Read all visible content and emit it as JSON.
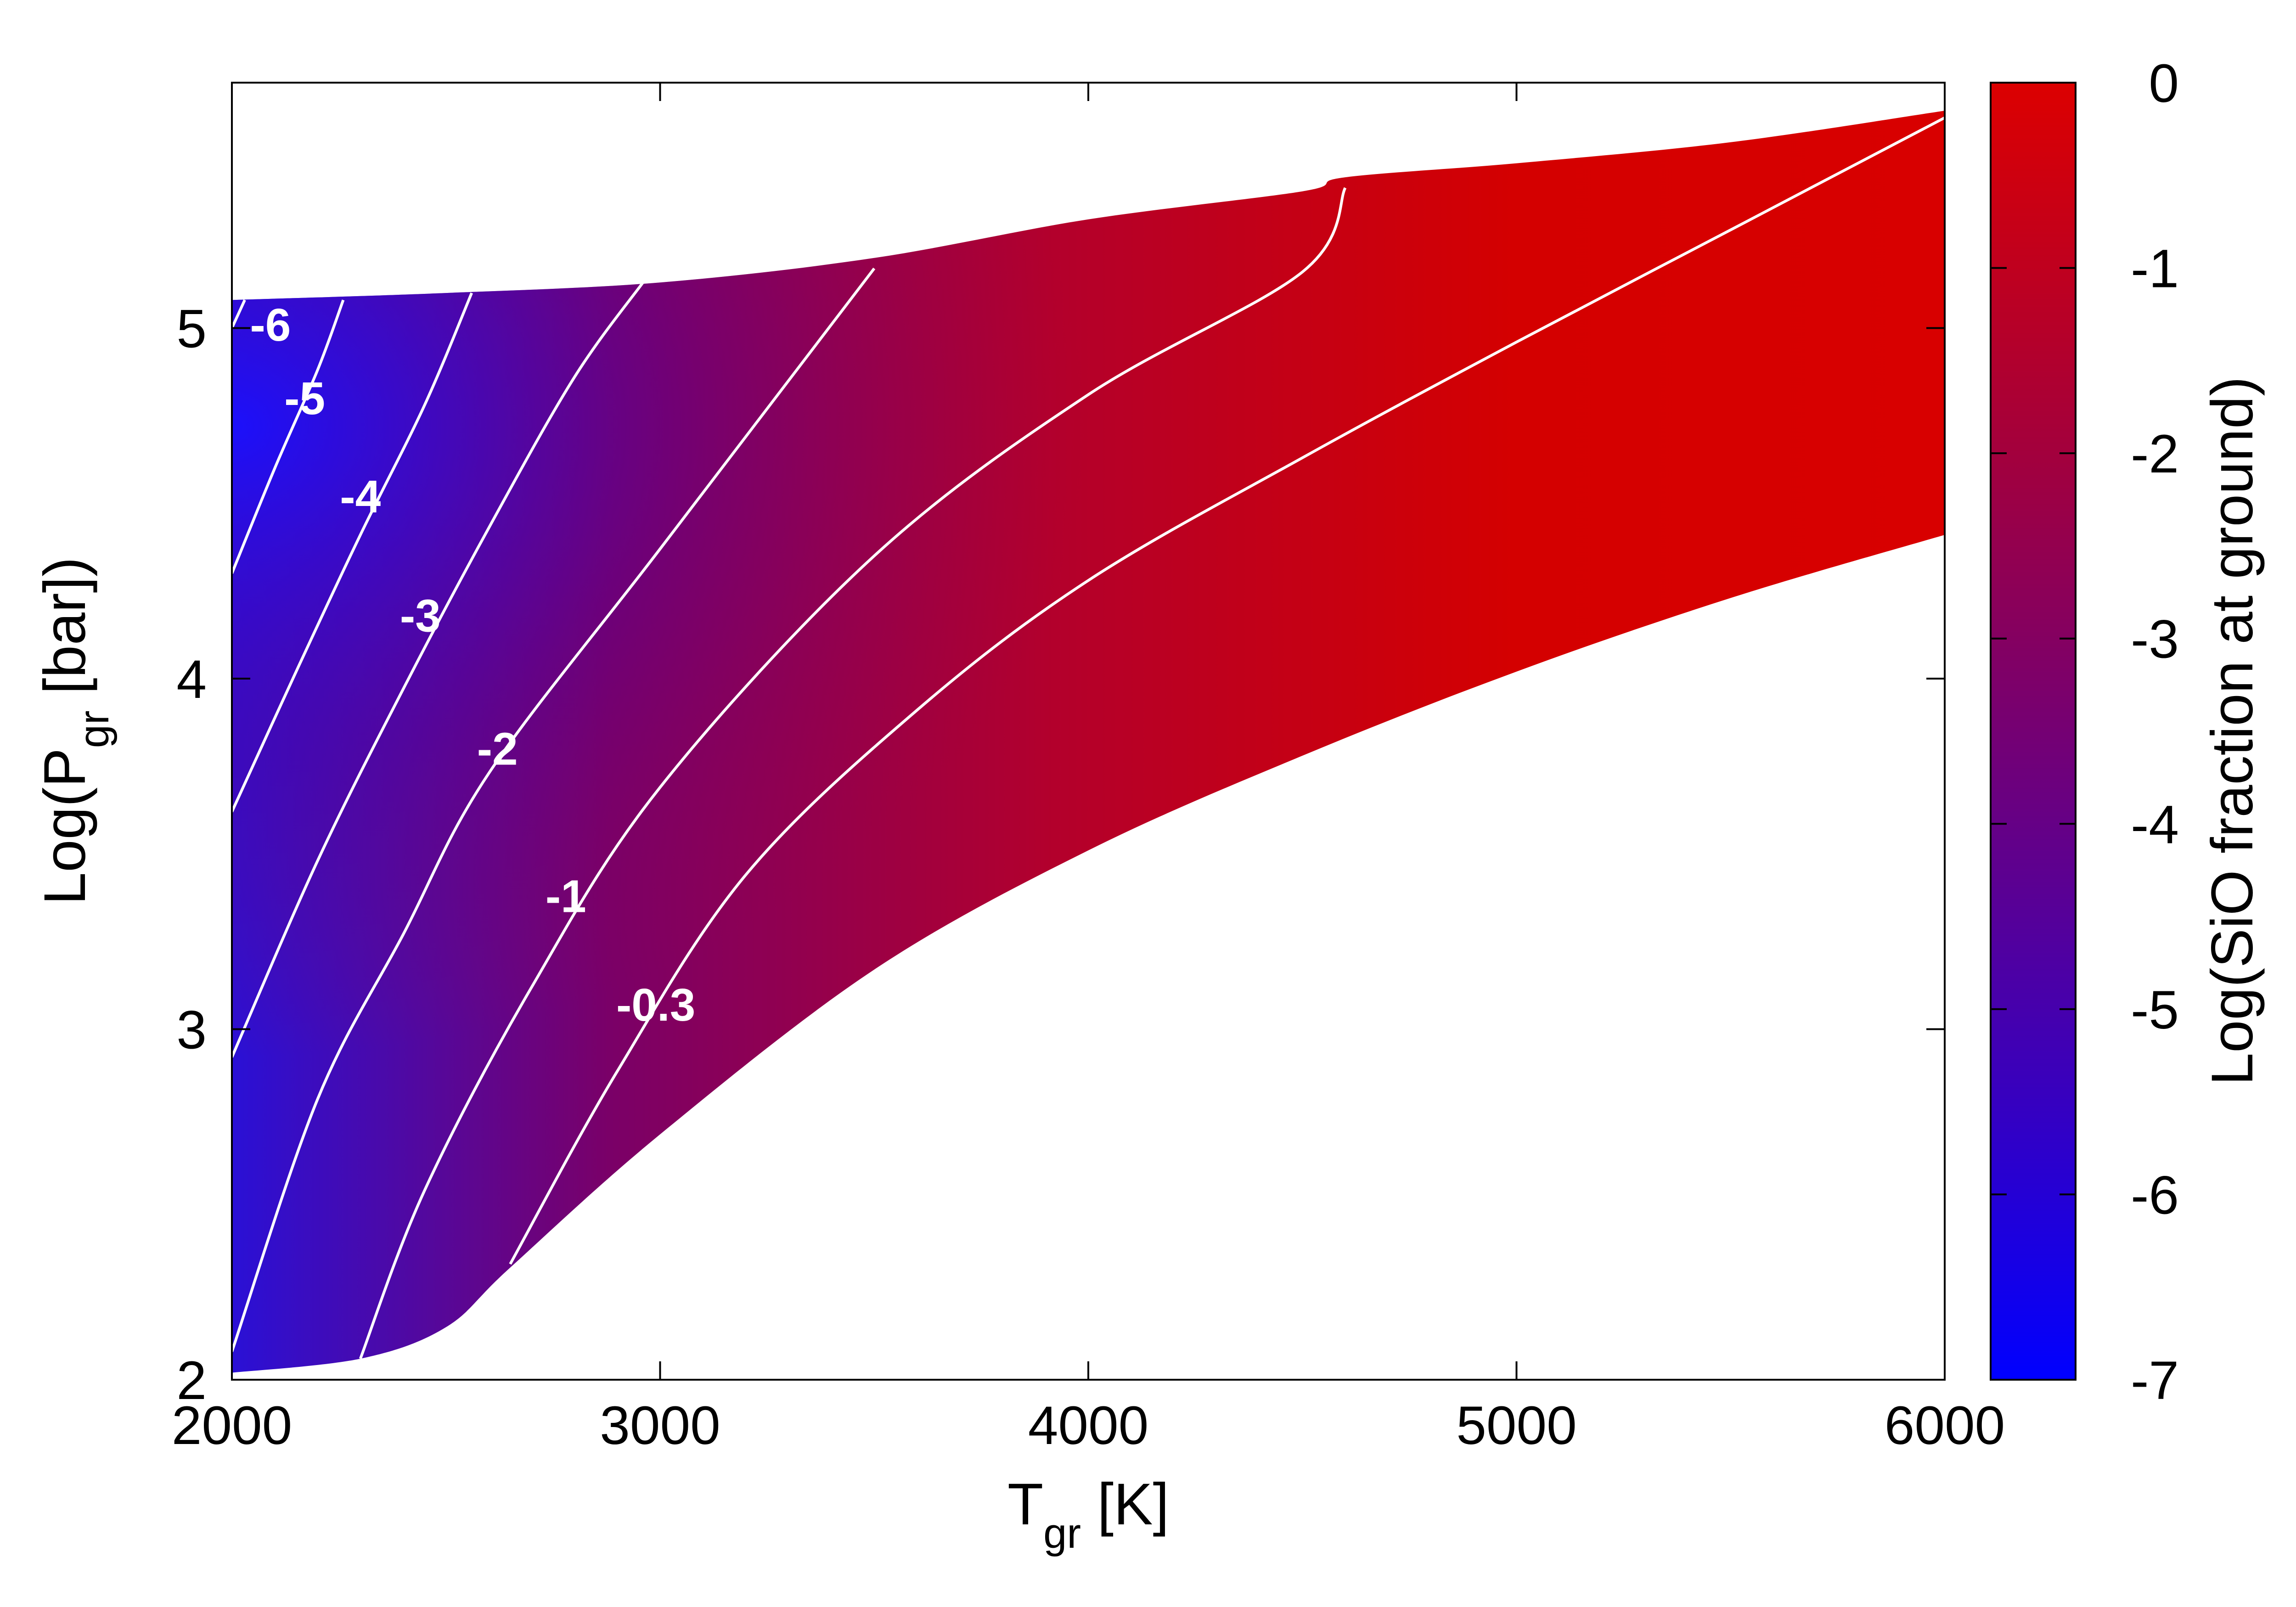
{
  "chart_data": {
    "type": "contour",
    "x_title": "T",
    "x_title_sub": "gr",
    "x_title_unit": " [K]",
    "y_title": "Log(P",
    "y_title_sub": "gr",
    "y_title_unit": " [bar])",
    "colorbar_title": "Log(SiO fraction at ground)",
    "xlim": [
      2000,
      6000
    ],
    "ylim": [
      2,
      5.7
    ],
    "clim": [
      -7,
      0
    ],
    "x_ticks": [
      "2000",
      "3000",
      "4000",
      "5000",
      "6000"
    ],
    "y_ticks": [
      "2",
      "3",
      "4",
      "5"
    ],
    "colorbar_ticks": [
      "0",
      "-1",
      "-2",
      "-3",
      "-4",
      "-5",
      "-6",
      "-7"
    ],
    "colormap": {
      "low": "#0000ff",
      "high": "#dc0000"
    },
    "grid": false,
    "region": {
      "upper": [
        [
          2000,
          5.08
        ],
        [
          2500,
          5.1
        ],
        [
          3000,
          5.13
        ],
        [
          3500,
          5.2
        ],
        [
          4000,
          5.31
        ],
        [
          4500,
          5.39
        ],
        [
          4600,
          5.43
        ],
        [
          5000,
          5.47
        ],
        [
          5500,
          5.53
        ],
        [
          6000,
          5.62
        ]
      ],
      "lower": [
        [
          2000,
          2.02
        ],
        [
          2300,
          2.06
        ],
        [
          2500,
          2.15
        ],
        [
          2650,
          2.32
        ],
        [
          3000,
          2.7
        ],
        [
          3500,
          3.17
        ],
        [
          4000,
          3.51
        ],
        [
          4500,
          3.78
        ],
        [
          5000,
          4.02
        ],
        [
          5500,
          4.23
        ],
        [
          6000,
          4.41
        ]
      ]
    },
    "contours": [
      {
        "level": -6,
        "label": "-6",
        "label_at": [
          2090,
          5.01
        ],
        "points": [
          [
            2000,
            5.0
          ],
          [
            2030,
            5.08
          ]
        ]
      },
      {
        "level": -5,
        "label": "-5",
        "label_at": [
          2170,
          4.8
        ],
        "points": [
          [
            2000,
            4.3
          ],
          [
            2100,
            4.6
          ],
          [
            2200,
            4.88
          ],
          [
            2260,
            5.08
          ]
        ]
      },
      {
        "level": -4,
        "label": "-4",
        "label_at": [
          2300,
          4.52
        ],
        "points": [
          [
            2000,
            3.62
          ],
          [
            2150,
            4.02
          ],
          [
            2300,
            4.41
          ],
          [
            2450,
            4.78
          ],
          [
            2560,
            5.1
          ]
        ]
      },
      {
        "level": -3,
        "label": "-3",
        "label_at": [
          2440,
          4.18
        ],
        "points": [
          [
            2000,
            2.92
          ],
          [
            2200,
            3.48
          ],
          [
            2400,
            3.97
          ],
          [
            2600,
            4.43
          ],
          [
            2800,
            4.86
          ],
          [
            2960,
            5.13
          ]
        ]
      },
      {
        "level": -2,
        "label": "-2",
        "label_at": [
          2620,
          3.8
        ],
        "points": [
          [
            2000,
            2.08
          ],
          [
            2200,
            2.8
          ],
          [
            2400,
            3.27
          ],
          [
            2600,
            3.73
          ],
          [
            3000,
            4.37
          ],
          [
            3500,
            5.17
          ]
        ]
      },
      {
        "level": -1,
        "label": "-1",
        "label_at": [
          2780,
          3.38
        ],
        "points": [
          [
            2300,
            2.06
          ],
          [
            2450,
            2.54
          ],
          [
            2700,
            3.12
          ],
          [
            3000,
            3.69
          ],
          [
            3500,
            4.35
          ],
          [
            4000,
            4.81
          ],
          [
            4500,
            5.16
          ],
          [
            4600,
            5.4
          ]
        ]
      },
      {
        "level": -0.3,
        "label": "-0.3",
        "label_at": [
          2990,
          3.07
        ],
        "points": [
          [
            2650,
            2.33
          ],
          [
            2900,
            2.88
          ],
          [
            3200,
            3.44
          ],
          [
            3600,
            3.91
          ],
          [
            4000,
            4.28
          ],
          [
            4500,
            4.63
          ],
          [
            5000,
            4.96
          ],
          [
            5500,
            5.28
          ],
          [
            6000,
            5.6
          ]
        ]
      }
    ]
  }
}
